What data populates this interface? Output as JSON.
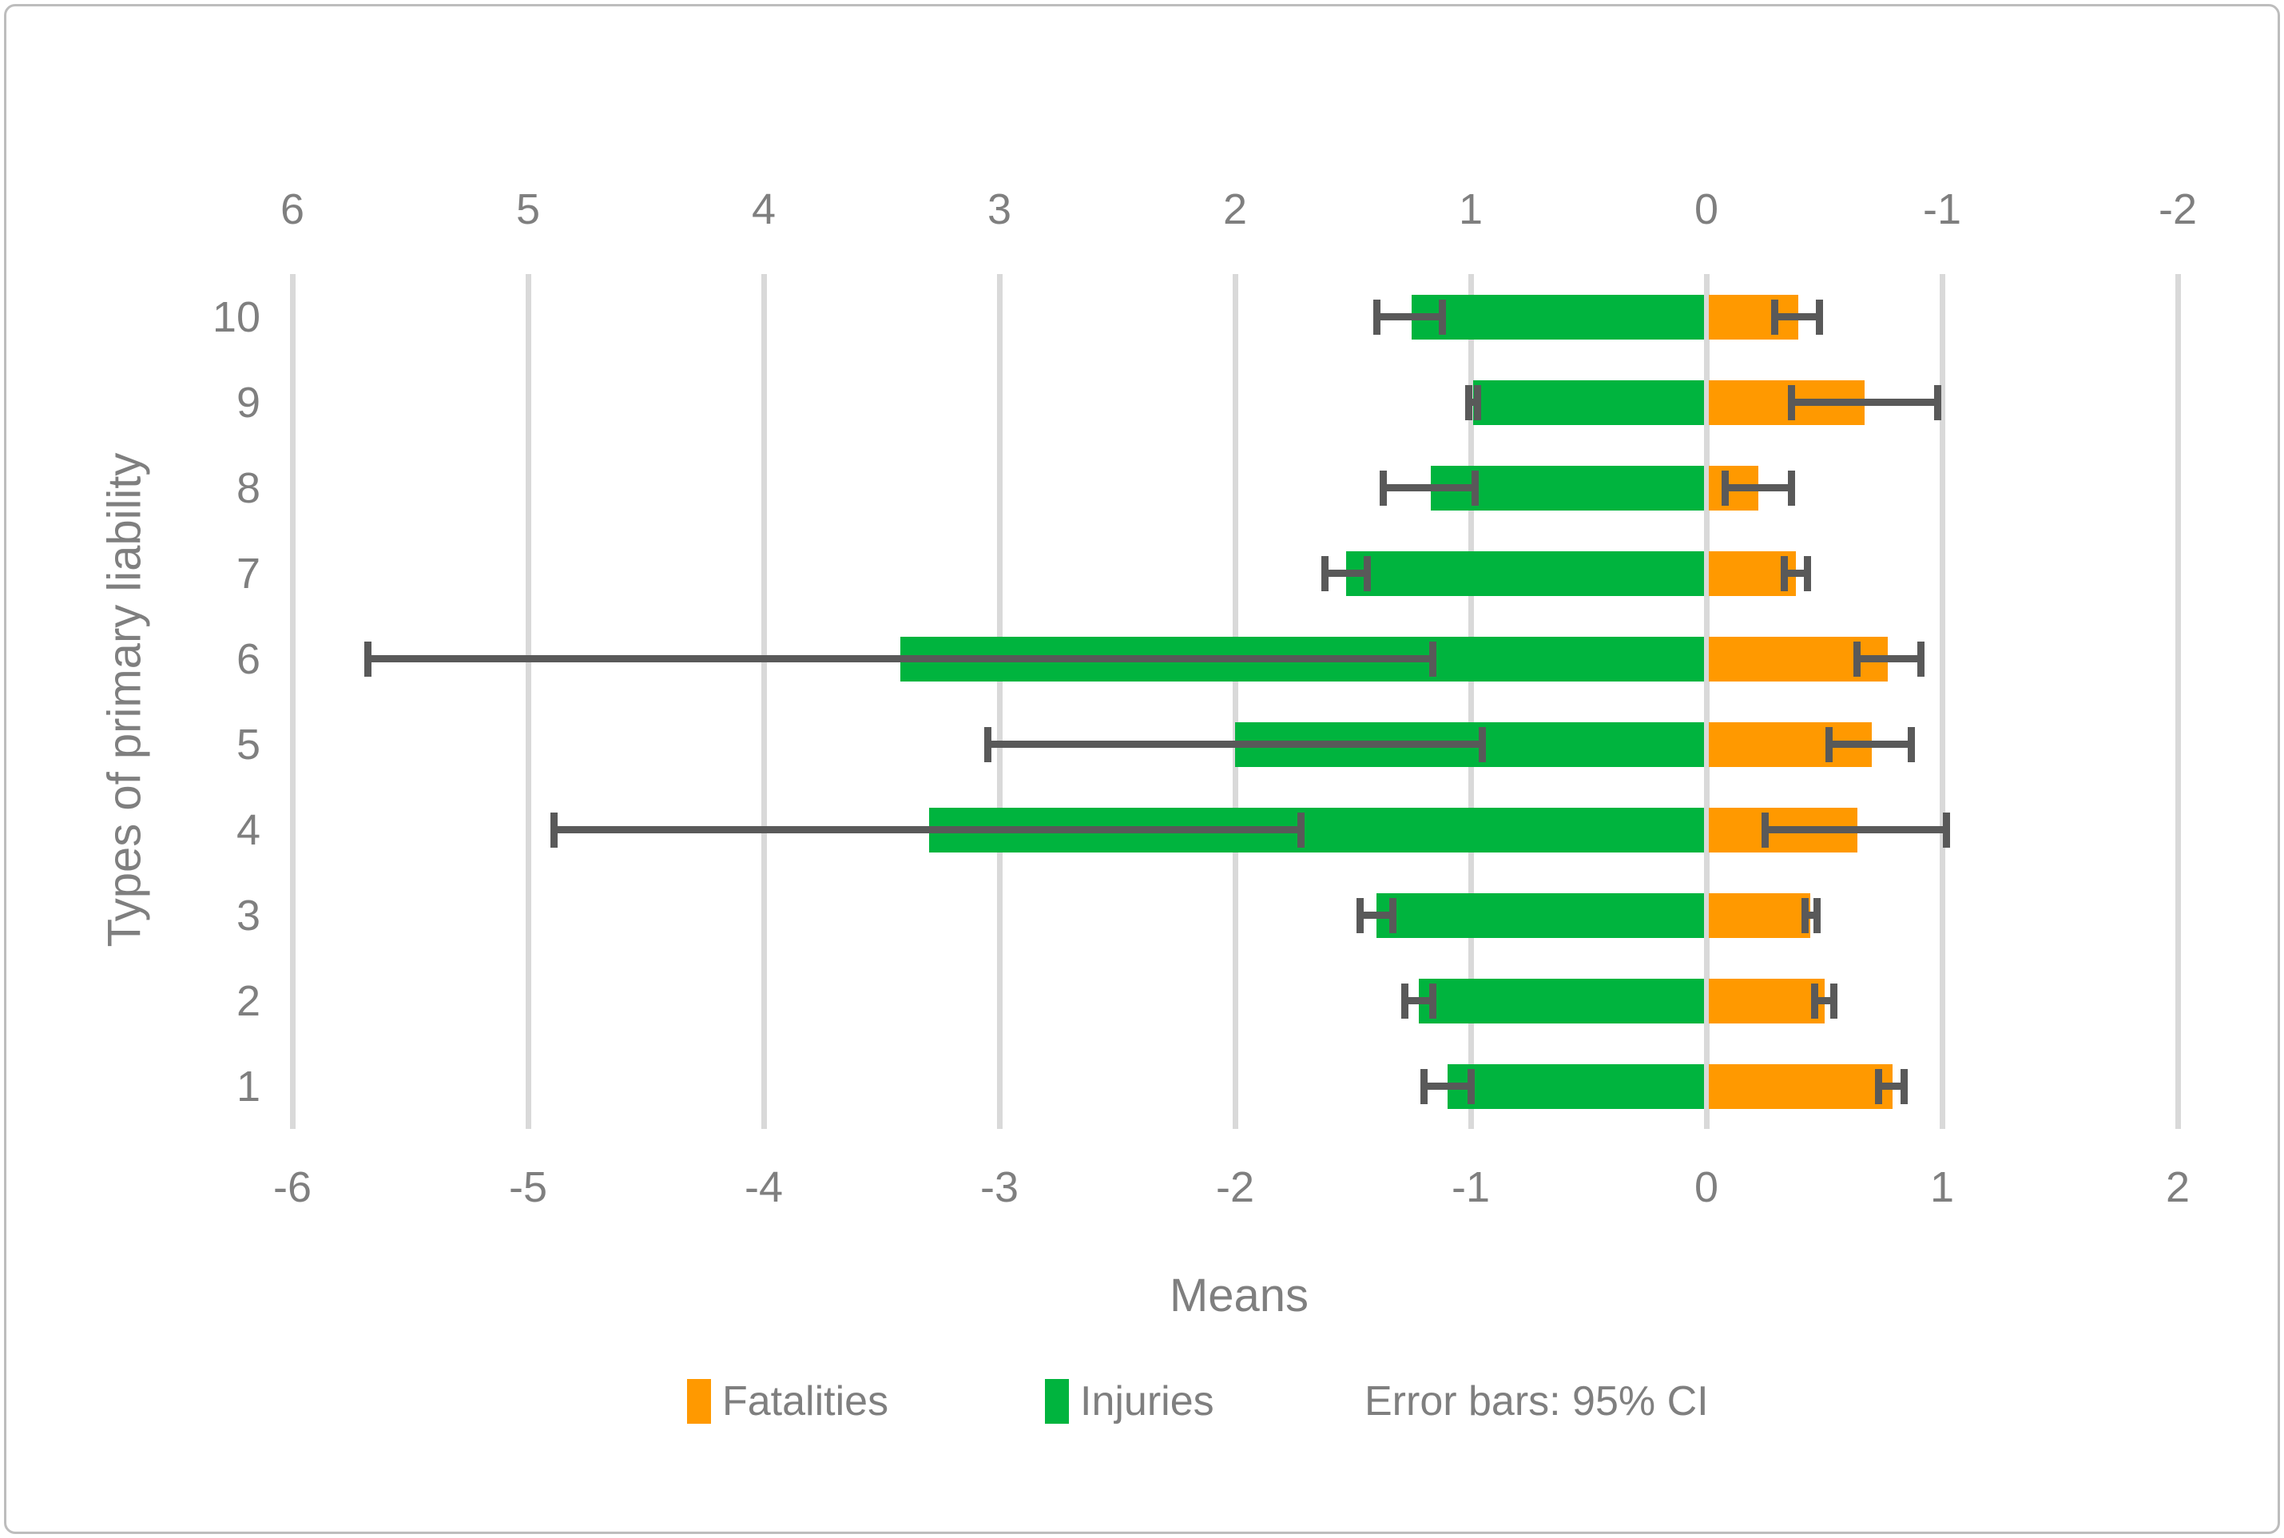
{
  "chart_data": {
    "type": "bar",
    "variant": "horizontal-diverging",
    "xlabel": "Means",
    "ylabel": "Types of primary liability",
    "legend_note": "Error bars: 95% CI",
    "top_axis_ticks": [
      "6",
      "5",
      "4",
      "3",
      "2",
      "1",
      "0",
      "-1",
      "-2"
    ],
    "bottom_axis_ticks": [
      "-6",
      "-5",
      "-4",
      "-3",
      "-2",
      "-1",
      "0",
      "1",
      "2"
    ],
    "categories_top_to_bottom": [
      "10",
      "9",
      "8",
      "7",
      "6",
      "5",
      "4",
      "3",
      "2",
      "1"
    ],
    "axis_note": "Injuries bars extend left (top secondary axis reversed); Fatalities bars extend right (bottom primary axis)",
    "series": [
      {
        "name": "Fatalities",
        "color": "#FF9900",
        "direction": "right",
        "values": [
          0.39,
          0.67,
          0.22,
          0.38,
          0.77,
          0.7,
          0.64,
          0.44,
          0.5,
          0.79
        ],
        "ci_low": [
          0.29,
          0.36,
          0.08,
          0.33,
          0.64,
          0.52,
          0.25,
          0.42,
          0.46,
          0.73
        ],
        "ci_high": [
          0.48,
          0.98,
          0.36,
          0.43,
          0.91,
          0.87,
          1.02,
          0.47,
          0.54,
          0.84
        ]
      },
      {
        "name": "Injuries",
        "color": "#00B43E",
        "direction": "left",
        "values": [
          1.25,
          0.99,
          1.17,
          1.53,
          3.42,
          2.0,
          3.3,
          1.4,
          1.22,
          1.1
        ],
        "ci_low": [
          1.12,
          0.97,
          0.98,
          1.44,
          1.16,
          0.95,
          1.72,
          1.33,
          1.16,
          1.0
        ],
        "ci_high": [
          1.4,
          1.01,
          1.37,
          1.62,
          5.68,
          3.05,
          4.89,
          1.47,
          1.28,
          1.2
        ]
      }
    ],
    "colors": {
      "error_bar": "#595959",
      "gridline": "#D9D9D9",
      "axis_text": "#7F7F7F"
    }
  }
}
